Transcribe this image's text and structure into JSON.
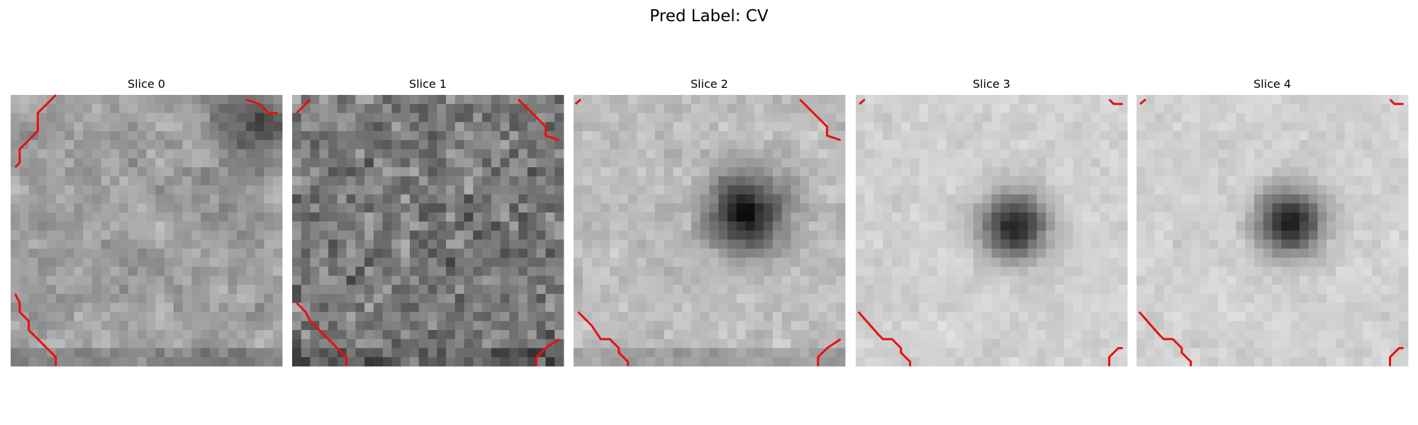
{
  "figure": {
    "title": "Pred Label: CV",
    "panels": [
      {
        "title": "Slice 0"
      },
      {
        "title": "Slice 1"
      },
      {
        "title": "Slice 2"
      },
      {
        "title": "Slice 3"
      },
      {
        "title": "Slice 4"
      }
    ]
  }
}
